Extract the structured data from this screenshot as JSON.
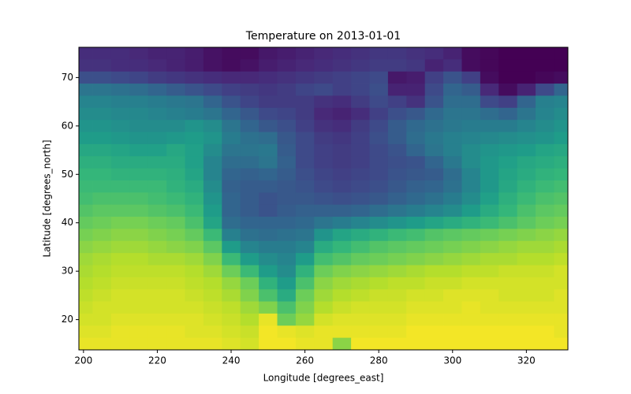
{
  "chart_data": {
    "type": "heatmap",
    "title": "Temperature on 2013-01-01",
    "x_label": "Longitude [degrees_east]",
    "y_label": "Latitude [degrees_north]",
    "colormap": "viridis",
    "clim": [
      238,
      300
    ],
    "xlim": [
      198.75,
      331.25
    ],
    "ylim": [
      13.75,
      76.25
    ],
    "xticks": [
      200,
      220,
      240,
      260,
      280,
      300,
      320
    ],
    "yticks": [
      20,
      30,
      40,
      50,
      60,
      70
    ],
    "x": [
      200,
      205,
      210,
      215,
      220,
      225,
      230,
      235,
      240,
      245,
      250,
      255,
      260,
      265,
      270,
      275,
      280,
      285,
      290,
      295,
      300,
      305,
      310,
      315,
      320,
      325,
      330
    ],
    "y": [
      75,
      72.5,
      70,
      67.5,
      65,
      62.5,
      60,
      57.5,
      55,
      52.5,
      50,
      47.5,
      45,
      42.5,
      40,
      37.5,
      35,
      32.5,
      30,
      27.5,
      25,
      22.5,
      20,
      17.5,
      15
    ],
    "values": [
      [
        246,
        246,
        246,
        245,
        244,
        244,
        243,
        241,
        240,
        240,
        242,
        243,
        244,
        245,
        246,
        247,
        248,
        248,
        247,
        246,
        244,
        240,
        239,
        238,
        238,
        238,
        238
      ],
      [
        247,
        247,
        246,
        246,
        245,
        244,
        243,
        241,
        240,
        241,
        243,
        244,
        245,
        246,
        247,
        248,
        249,
        249,
        248,
        244,
        246,
        240,
        239,
        238,
        238,
        238,
        238
      ],
      [
        253,
        253,
        252,
        251,
        249,
        248,
        247,
        246,
        245,
        245,
        246,
        247,
        248,
        249,
        250,
        251,
        252,
        242,
        243,
        250,
        254,
        250,
        240,
        238,
        238,
        239,
        240
      ],
      [
        262,
        262,
        261,
        260,
        258,
        256,
        254,
        252,
        250,
        249,
        248,
        249,
        251,
        252,
        250,
        251,
        253,
        244,
        244,
        252,
        258,
        256,
        245,
        240,
        244,
        252,
        258
      ],
      [
        266,
        266,
        265,
        265,
        264,
        263,
        262,
        258,
        254,
        251,
        249,
        249,
        249,
        247,
        246,
        249,
        252,
        250,
        247,
        254,
        260,
        260,
        252,
        250,
        258,
        265,
        266
      ],
      [
        268,
        268,
        267,
        267,
        266,
        265,
        264,
        262,
        258,
        255,
        252,
        251,
        249,
        245,
        244,
        246,
        250,
        253,
        255,
        259,
        262,
        262,
        260,
        258,
        262,
        266,
        268
      ],
      [
        270,
        270,
        269,
        268,
        268,
        268,
        270,
        268,
        262,
        258,
        255,
        253,
        250,
        247,
        246,
        249,
        252,
        256,
        259,
        261,
        263,
        264,
        264,
        264,
        266,
        268,
        270
      ],
      [
        272,
        272,
        271,
        270,
        270,
        271,
        272,
        270,
        264,
        261,
        260,
        255,
        252,
        249,
        248,
        250,
        253,
        256,
        260,
        263,
        265,
        266,
        267,
        268,
        269,
        270,
        272
      ],
      [
        275,
        275,
        274,
        273,
        273,
        275,
        273,
        268,
        262,
        262,
        263,
        256,
        252,
        250,
        249,
        250,
        252,
        254,
        258,
        262,
        265,
        268,
        270,
        271,
        272,
        274,
        275
      ],
      [
        277,
        277,
        276,
        276,
        276,
        276,
        273,
        266,
        260,
        260,
        262,
        257,
        252,
        250,
        249,
        250,
        252,
        253,
        254,
        258,
        263,
        268,
        271,
        273,
        275,
        276,
        277
      ],
      [
        279,
        279,
        278,
        278,
        278,
        277,
        274,
        266,
        258,
        257,
        258,
        256,
        253,
        251,
        250,
        251,
        252,
        254,
        255,
        256,
        260,
        266,
        271,
        274,
        276,
        278,
        279
      ],
      [
        280,
        280,
        280,
        280,
        280,
        278,
        276,
        268,
        257,
        256,
        256,
        255,
        254,
        252,
        251,
        252,
        253,
        255,
        257,
        258,
        261,
        266,
        271,
        275,
        278,
        280,
        281
      ],
      [
        281,
        282,
        282,
        282,
        281,
        280,
        278,
        270,
        258,
        256,
        254,
        255,
        255,
        254,
        253,
        254,
        255,
        257,
        259,
        261,
        264,
        268,
        273,
        277,
        280,
        282,
        283
      ],
      [
        283,
        284,
        284,
        284,
        283,
        282,
        280,
        272,
        258,
        256,
        254,
        256,
        257,
        257,
        257,
        258,
        260,
        262,
        264,
        266,
        268,
        272,
        276,
        279,
        282,
        284,
        285
      ],
      [
        285,
        286,
        287,
        287,
        286,
        285,
        282,
        274,
        260,
        258,
        258,
        258,
        259,
        262,
        264,
        266,
        268,
        270,
        272,
        274,
        276,
        278,
        280,
        282,
        284,
        286,
        287
      ],
      [
        287,
        288,
        289,
        289,
        288,
        287,
        285,
        280,
        265,
        261,
        260,
        261,
        262,
        270,
        274,
        276,
        278,
        280,
        281,
        283,
        284,
        285,
        286,
        287,
        288,
        289,
        290
      ],
      [
        289,
        290,
        291,
        291,
        290,
        289,
        288,
        284,
        272,
        266,
        264,
        264,
        266,
        276,
        279,
        281,
        283,
        284,
        285,
        286,
        287,
        288,
        289,
        290,
        291,
        291,
        292
      ],
      [
        291,
        292,
        293,
        293,
        292,
        292,
        291,
        288,
        280,
        272,
        268,
        266,
        272,
        281,
        283,
        285,
        286,
        287,
        288,
        289,
        290,
        291,
        292,
        292,
        293,
        293,
        294
      ],
      [
        292,
        293,
        294,
        294,
        294,
        294,
        293,
        291,
        286,
        280,
        272,
        268,
        278,
        286,
        288,
        289,
        290,
        291,
        292,
        293,
        293,
        294,
        294,
        295,
        295,
        295,
        296
      ],
      [
        293,
        294,
        295,
        295,
        295,
        295,
        294,
        293,
        290,
        286,
        278,
        272,
        282,
        289,
        291,
        292,
        293,
        294,
        294,
        295,
        295,
        296,
        296,
        296,
        296,
        296,
        296
      ],
      [
        294,
        295,
        296,
        296,
        296,
        296,
        295,
        294,
        292,
        288,
        282,
        276,
        286,
        291,
        293,
        294,
        295,
        295,
        296,
        296,
        297,
        297,
        297,
        296,
        296,
        296,
        297
      ],
      [
        295,
        296,
        296,
        296,
        296,
        296,
        296,
        295,
        294,
        291,
        288,
        282,
        288,
        293,
        295,
        296,
        296,
        296,
        297,
        297,
        297,
        298,
        297,
        297,
        297,
        297,
        297
      ],
      [
        296,
        296,
        297,
        297,
        297,
        297,
        297,
        296,
        295,
        293,
        298,
        286,
        290,
        296,
        297,
        297,
        297,
        297,
        298,
        298,
        298,
        298,
        298,
        298,
        298,
        298,
        298
      ],
      [
        297,
        297,
        298,
        298,
        298,
        298,
        297,
        297,
        296,
        295,
        299,
        298,
        297,
        298,
        298,
        298,
        298,
        298,
        299,
        299,
        299,
        299,
        299,
        299,
        299,
        299,
        298
      ],
      [
        298,
        298,
        298,
        298,
        298,
        298,
        298,
        298,
        297,
        296,
        299,
        299,
        298,
        298,
        289,
        299,
        299,
        299,
        299,
        299,
        299,
        299,
        299,
        299,
        299,
        299,
        299
      ]
    ]
  }
}
